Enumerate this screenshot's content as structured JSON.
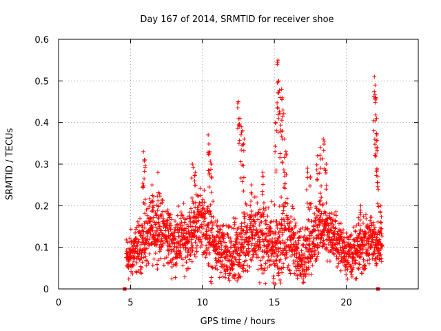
{
  "chart_data": {
    "type": "scatter",
    "title": "Day 167 of 2014, SRMTID for receiver shoe",
    "xlabel": "GPS time / hours",
    "ylabel": "SRMTID / TECUs",
    "xlim": [
      0,
      25
    ],
    "ylim": [
      0,
      0.6
    ],
    "x_ticks": [
      0,
      5,
      10,
      15,
      20
    ],
    "x_tick_labels": [
      "0",
      "5",
      "10",
      "15",
      "20"
    ],
    "y_ticks": [
      0,
      0.1,
      0.2,
      0.3,
      0.4,
      0.5,
      0.6
    ],
    "y_tick_labels": [
      "0",
      "0.1",
      "0.2",
      "0.3",
      "0.4",
      "0.5",
      "0.6"
    ],
    "grid": true,
    "series": [
      {
        "name": "SRMTID",
        "marker": "+",
        "color": "#ff0000",
        "dense_range_hours": [
          4.7,
          22.5
        ],
        "sample_interval_hours": 0.0083,
        "envelope": [
          [
            4.7,
            0.07,
            0.04
          ],
          [
            5.0,
            0.08,
            0.04
          ],
          [
            5.5,
            0.1,
            0.04
          ],
          [
            6.0,
            0.12,
            0.05
          ],
          [
            6.5,
            0.14,
            0.05
          ],
          [
            7.0,
            0.15,
            0.05
          ],
          [
            7.5,
            0.13,
            0.05
          ],
          [
            8.0,
            0.11,
            0.05
          ],
          [
            8.5,
            0.12,
            0.05
          ],
          [
            9.0,
            0.12,
            0.05
          ],
          [
            9.5,
            0.15,
            0.05
          ],
          [
            10.0,
            0.17,
            0.05
          ],
          [
            10.5,
            0.12,
            0.06
          ],
          [
            11.0,
            0.1,
            0.05
          ],
          [
            11.5,
            0.08,
            0.05
          ],
          [
            12.0,
            0.07,
            0.05
          ],
          [
            12.5,
            0.09,
            0.06
          ],
          [
            13.0,
            0.12,
            0.06
          ],
          [
            13.5,
            0.14,
            0.06
          ],
          [
            14.0,
            0.12,
            0.06
          ],
          [
            14.5,
            0.11,
            0.06
          ],
          [
            15.0,
            0.1,
            0.06
          ],
          [
            15.5,
            0.12,
            0.06
          ],
          [
            16.0,
            0.13,
            0.06
          ],
          [
            16.5,
            0.1,
            0.05
          ],
          [
            17.0,
            0.07,
            0.05
          ],
          [
            17.5,
            0.1,
            0.05
          ],
          [
            18.0,
            0.14,
            0.05
          ],
          [
            18.5,
            0.15,
            0.05
          ],
          [
            19.0,
            0.13,
            0.04
          ],
          [
            19.5,
            0.11,
            0.04
          ],
          [
            20.0,
            0.09,
            0.04
          ],
          [
            20.5,
            0.08,
            0.04
          ],
          [
            21.0,
            0.1,
            0.04
          ],
          [
            21.5,
            0.12,
            0.04
          ],
          [
            22.0,
            0.11,
            0.04
          ],
          [
            22.5,
            0.1,
            0.03
          ]
        ],
        "spikes": [
          [
            5.9,
            0.33
          ],
          [
            6.0,
            0.31
          ],
          [
            6.5,
            0.25
          ],
          [
            6.9,
            0.28
          ],
          [
            7.6,
            0.19
          ],
          [
            9.3,
            0.3
          ],
          [
            9.5,
            0.28
          ],
          [
            10.4,
            0.37
          ],
          [
            10.5,
            0.33
          ],
          [
            10.6,
            0.3
          ],
          [
            12.5,
            0.45
          ],
          [
            12.6,
            0.41
          ],
          [
            12.7,
            0.39
          ],
          [
            12.8,
            0.38
          ],
          [
            12.9,
            0.36
          ],
          [
            13.4,
            0.25
          ],
          [
            14.2,
            0.28
          ],
          [
            15.1,
            0.4
          ],
          [
            15.2,
            0.54
          ],
          [
            15.25,
            0.55
          ],
          [
            15.3,
            0.5
          ],
          [
            15.4,
            0.46
          ],
          [
            15.5,
            0.48
          ],
          [
            15.6,
            0.43
          ],
          [
            15.7,
            0.36
          ],
          [
            15.8,
            0.33
          ],
          [
            17.3,
            0.29
          ],
          [
            17.5,
            0.27
          ],
          [
            18.0,
            0.32
          ],
          [
            18.2,
            0.34
          ],
          [
            18.4,
            0.36
          ],
          [
            18.6,
            0.3
          ],
          [
            21.0,
            0.2
          ],
          [
            21.95,
            0.51
          ],
          [
            22.0,
            0.49
          ],
          [
            22.05,
            0.46
          ],
          [
            22.1,
            0.41
          ],
          [
            22.15,
            0.34
          ],
          [
            22.2,
            0.27
          ],
          [
            22.4,
            0.2
          ]
        ],
        "edge_points": [
          [
            4.6,
            0.0
          ],
          [
            22.2,
            0.0
          ]
        ]
      }
    ]
  }
}
